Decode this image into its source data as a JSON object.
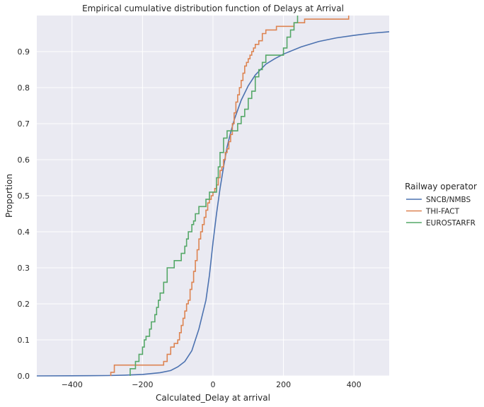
{
  "chart_data": {
    "type": "line",
    "subtype": "ecdf-step",
    "title": "Empirical cumulative distribution function of Delays at Arrival",
    "xlabel": "Calculated_Delay at arrival",
    "ylabel": "Proportion",
    "xlim": [
      -500,
      500
    ],
    "ylim": [
      0,
      1
    ],
    "x_ticks": [
      -400,
      -200,
      0,
      200,
      400
    ],
    "x_tick_labels": [
      "−400",
      "−200",
      "0",
      "200",
      "400"
    ],
    "y_ticks": [
      0,
      0.1,
      0.2,
      0.3,
      0.4,
      0.5,
      0.6,
      0.7,
      0.8,
      0.9
    ],
    "y_tick_labels": [
      "0.0",
      "0.1",
      "0.2",
      "0.3",
      "0.4",
      "0.5",
      "0.6",
      "0.7",
      "0.8",
      "0.9"
    ],
    "grid": true,
    "background": "#eaeaf2",
    "legend": {
      "title": "Railway operator",
      "placement": "right"
    },
    "series": [
      {
        "name": "SNCB/NMBS",
        "color": "#4c72b0",
        "step": false,
        "x": [
          -500,
          -400,
          -300,
          -250,
          -200,
          -150,
          -120,
          -100,
          -80,
          -60,
          -40,
          -20,
          -10,
          0,
          10,
          20,
          30,
          40,
          50,
          60,
          80,
          100,
          120,
          150,
          175,
          200,
          250,
          300,
          350,
          400,
          450,
          500
        ],
        "y": [
          0,
          0.0003,
          0.001,
          0.002,
          0.004,
          0.009,
          0.015,
          0.025,
          0.04,
          0.07,
          0.13,
          0.21,
          0.28,
          0.37,
          0.45,
          0.52,
          0.58,
          0.635,
          0.675,
          0.71,
          0.765,
          0.805,
          0.835,
          0.865,
          0.88,
          0.893,
          0.913,
          0.928,
          0.938,
          0.945,
          0.951,
          0.955
        ]
      },
      {
        "name": "THI-FACT",
        "color": "#dd8452",
        "step": true,
        "x": [
          -290,
          -280,
          -140,
          -130,
          -120,
          -110,
          -100,
          -95,
          -90,
          -85,
          -80,
          -75,
          -70,
          -65,
          -60,
          -55,
          -50,
          -45,
          -40,
          -35,
          -30,
          -25,
          -20,
          -15,
          -10,
          -5,
          0,
          5,
          10,
          15,
          20,
          25,
          30,
          35,
          40,
          45,
          50,
          55,
          60,
          65,
          70,
          75,
          80,
          85,
          90,
          95,
          100,
          105,
          110,
          115,
          120,
          130,
          140,
          150,
          160,
          180,
          200,
          230,
          260,
          290,
          385
        ],
        "y": [
          0.01,
          0.03,
          0.04,
          0.06,
          0.08,
          0.09,
          0.1,
          0.12,
          0.14,
          0.16,
          0.18,
          0.2,
          0.21,
          0.24,
          0.26,
          0.29,
          0.32,
          0.35,
          0.38,
          0.4,
          0.42,
          0.44,
          0.46,
          0.48,
          0.49,
          0.5,
          0.51,
          0.52,
          0.53,
          0.55,
          0.57,
          0.58,
          0.6,
          0.62,
          0.63,
          0.65,
          0.67,
          0.7,
          0.73,
          0.76,
          0.78,
          0.8,
          0.82,
          0.84,
          0.86,
          0.87,
          0.88,
          0.89,
          0.9,
          0.91,
          0.92,
          0.93,
          0.95,
          0.96,
          0.96,
          0.97,
          0.97,
          0.98,
          0.99,
          0.99,
          1.0
        ]
      },
      {
        "name": "EUROSTARFR",
        "color": "#55a868",
        "step": true,
        "x": [
          -235,
          -220,
          -210,
          -200,
          -195,
          -190,
          -180,
          -175,
          -165,
          -160,
          -155,
          -150,
          -140,
          -130,
          -110,
          -90,
          -80,
          -75,
          -70,
          -60,
          -55,
          -50,
          -40,
          -30,
          -20,
          -10,
          10,
          15,
          20,
          30,
          40,
          60,
          70,
          80,
          90,
          100,
          110,
          120,
          130,
          140,
          150,
          160,
          200,
          210,
          220,
          230,
          240
        ],
        "y": [
          0.02,
          0.04,
          0.06,
          0.08,
          0.1,
          0.11,
          0.13,
          0.15,
          0.17,
          0.19,
          0.21,
          0.23,
          0.26,
          0.3,
          0.32,
          0.34,
          0.36,
          0.38,
          0.4,
          0.42,
          0.43,
          0.45,
          0.47,
          0.47,
          0.49,
          0.51,
          0.55,
          0.58,
          0.62,
          0.66,
          0.68,
          0.68,
          0.7,
          0.72,
          0.74,
          0.77,
          0.79,
          0.83,
          0.85,
          0.87,
          0.89,
          0.89,
          0.91,
          0.94,
          0.96,
          0.98,
          1.0
        ]
      }
    ]
  }
}
